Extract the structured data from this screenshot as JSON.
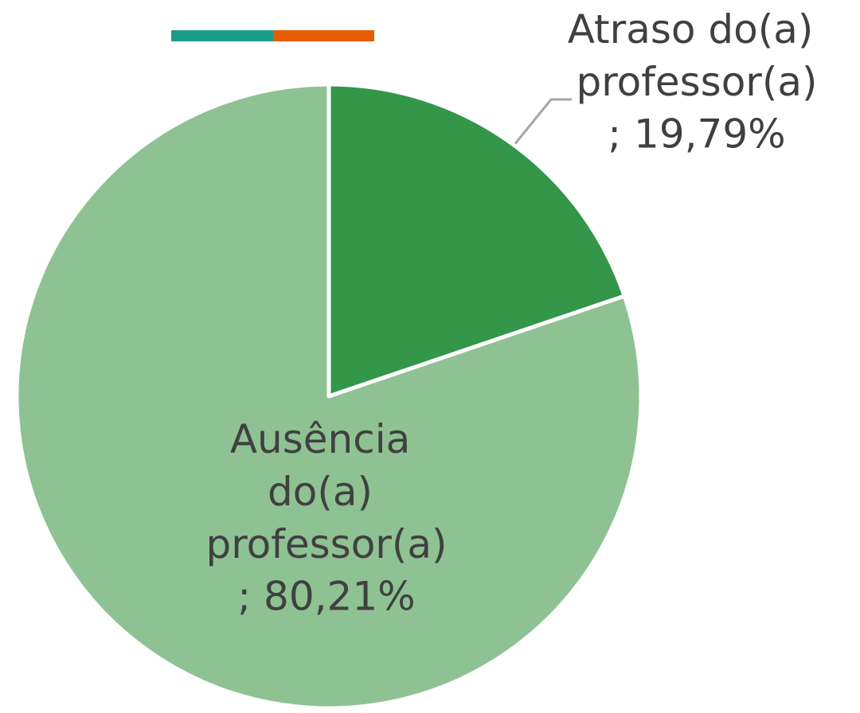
{
  "chart_data": {
    "type": "pie",
    "categories": [
      "Atraso do(a) professor(a)",
      "Ausência do(a) professor(a)"
    ],
    "values": [
      19.79,
      80.21
    ],
    "value_labels": [
      "; 19,79%",
      "; 80,21%"
    ],
    "colors": [
      "#339649",
      "#8fc293"
    ]
  }
}
